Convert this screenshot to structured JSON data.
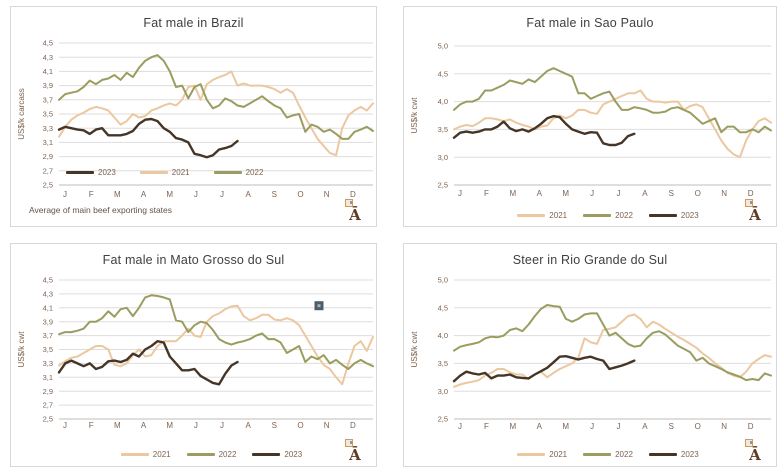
{
  "page": {
    "background": "#ffffff"
  },
  "months": [
    "J",
    "F",
    "M",
    "A",
    "M",
    "J",
    "J",
    "A",
    "S",
    "O",
    "N",
    "D"
  ],
  "colors": {
    "y2021": "#ecc79f",
    "y2022": "#9a9d5f",
    "y2023": "#453527",
    "grid": "#dddddd",
    "axis": "#bdbdbd",
    "tick_text": "#7d6250",
    "title_text": "#3f3f3f",
    "artifact_outer": "#4e5d6a",
    "artifact_inner": "#9fb4bf"
  },
  "chart_data": [
    {
      "type": "line",
      "title": "Fat male in Brazil",
      "ylabel": "US$/k carcass",
      "footnote": "Average  of main  beef exporting states",
      "logo_text": "Ā",
      "y_axis": {
        "min": 2.5,
        "max": 4.5,
        "step": 0.2,
        "tick_labels": [
          "2,5",
          "2,7",
          "2,9",
          "3,1",
          "3,3",
          "3,5",
          "3,7",
          "3,9",
          "4,1",
          "4,3",
          "4,5"
        ]
      },
      "x_tick_labels": [
        "J",
        "F",
        "M",
        "A",
        "M",
        "J",
        "J",
        "A",
        "S",
        "O",
        "N",
        "D"
      ],
      "legend": {
        "position": "inside",
        "order": [
          "2023",
          "2021",
          "2022"
        ]
      },
      "series": [
        {
          "name": "2021",
          "color": "#ecc79f",
          "values": [
            3.18,
            3.32,
            3.42,
            3.48,
            3.52,
            3.57,
            3.6,
            3.58,
            3.55,
            3.45,
            3.35,
            3.4,
            3.5,
            3.45,
            3.47,
            3.55,
            3.58,
            3.62,
            3.65,
            3.62,
            3.7,
            3.88,
            3.9,
            3.7,
            3.92,
            3.98,
            4.02,
            4.05,
            4.1,
            3.9,
            3.93,
            3.9,
            3.9,
            3.9,
            3.88,
            3.85,
            3.8,
            3.85,
            3.8,
            3.62,
            3.45,
            3.3,
            3.15,
            3.05,
            2.95,
            2.92,
            3.3,
            3.48,
            3.55,
            3.6,
            3.55,
            3.65
          ]
        },
        {
          "name": "2022",
          "color": "#9a9d5f",
          "values": [
            3.7,
            3.78,
            3.8,
            3.82,
            3.88,
            3.97,
            3.92,
            3.98,
            4.0,
            4.05,
            3.98,
            4.08,
            4.02,
            4.15,
            4.25,
            4.3,
            4.33,
            4.25,
            4.1,
            3.88,
            3.9,
            3.72,
            3.88,
            3.92,
            3.7,
            3.58,
            3.62,
            3.72,
            3.68,
            3.62,
            3.6,
            3.65,
            3.7,
            3.75,
            3.68,
            3.62,
            3.58,
            3.45,
            3.48,
            3.5,
            3.25,
            3.35,
            3.32,
            3.25,
            3.28,
            3.22,
            3.15,
            3.15,
            3.25,
            3.28,
            3.32,
            3.26
          ]
        },
        {
          "name": "2023",
          "color": "#453527",
          "values": [
            3.28,
            3.32,
            3.3,
            3.28,
            3.27,
            3.22,
            3.28,
            3.3,
            3.2,
            3.2,
            3.2,
            3.22,
            3.26,
            3.36,
            3.42,
            3.43,
            3.4,
            3.3,
            3.25,
            3.16,
            3.14,
            3.1,
            2.94,
            2.92,
            2.89,
            2.92,
            3.0,
            3.02,
            3.05,
            3.12
          ]
        }
      ]
    },
    {
      "type": "line",
      "title": "Fat male in Sao Paulo",
      "ylabel": "US$/k cwt",
      "logo_text": "Ā",
      "y_axis": {
        "min": 2.5,
        "max": 5.0,
        "step": 0.5,
        "tick_labels": [
          "2,5",
          "3,0",
          "3,5",
          "4,0",
          "4,5",
          "5,0"
        ]
      },
      "x_tick_labels": [
        "J",
        "F",
        "M",
        "A",
        "M",
        "J",
        "J",
        "A",
        "S",
        "O",
        "N",
        "D"
      ],
      "legend": {
        "position": "below",
        "order": [
          "2021",
          "2022",
          "2023"
        ]
      },
      "series": [
        {
          "name": "2021",
          "color": "#ecc79f",
          "values": [
            3.5,
            3.55,
            3.58,
            3.56,
            3.62,
            3.7,
            3.7,
            3.68,
            3.65,
            3.68,
            3.62,
            3.58,
            3.55,
            3.5,
            3.55,
            3.57,
            3.7,
            3.75,
            3.7,
            3.75,
            3.85,
            3.85,
            3.8,
            3.78,
            3.95,
            4.0,
            4.05,
            4.1,
            4.15,
            4.15,
            4.2,
            4.05,
            4.0,
            4.0,
            3.98,
            4.0,
            4.0,
            3.85,
            3.92,
            3.95,
            3.9,
            3.7,
            3.5,
            3.3,
            3.15,
            3.05,
            3.0,
            3.3,
            3.5,
            3.65,
            3.7,
            3.62
          ]
        },
        {
          "name": "2022",
          "color": "#9a9d5f",
          "values": [
            3.85,
            3.95,
            4.0,
            4.0,
            4.05,
            4.2,
            4.2,
            4.25,
            4.3,
            4.38,
            4.35,
            4.32,
            4.4,
            4.35,
            4.45,
            4.55,
            4.6,
            4.55,
            4.5,
            4.45,
            4.15,
            4.15,
            4.05,
            4.1,
            4.15,
            4.18,
            4.0,
            3.85,
            3.85,
            3.9,
            3.88,
            3.85,
            3.8,
            3.8,
            3.82,
            3.88,
            3.9,
            3.85,
            3.8,
            3.7,
            3.6,
            3.65,
            3.7,
            3.45,
            3.55,
            3.55,
            3.45,
            3.45,
            3.5,
            3.45,
            3.55,
            3.48
          ]
        },
        {
          "name": "2023",
          "color": "#453527",
          "values": [
            3.35,
            3.44,
            3.46,
            3.44,
            3.46,
            3.5,
            3.5,
            3.55,
            3.64,
            3.52,
            3.47,
            3.5,
            3.46,
            3.52,
            3.6,
            3.7,
            3.74,
            3.72,
            3.6,
            3.5,
            3.46,
            3.42,
            3.45,
            3.44,
            3.25,
            3.22,
            3.22,
            3.26,
            3.38,
            3.42
          ]
        }
      ]
    },
    {
      "type": "line",
      "title": "Fat male in Mato Grosso do Sul",
      "ylabel": "US$/k cwt",
      "logo_text": "Ā",
      "artifact_marker": {
        "x_frac": 0.828,
        "y_value": 4.13
      },
      "y_axis": {
        "min": 2.5,
        "max": 4.5,
        "step": 0.2,
        "tick_labels": [
          "2,5",
          "2,7",
          "2,9",
          "3,1",
          "3,3",
          "3,5",
          "3,7",
          "3,9",
          "4,1",
          "4,3",
          "4,5"
        ]
      },
      "x_tick_labels": [
        "J",
        "F",
        "M",
        "A",
        "M",
        "J",
        "J",
        "A",
        "S",
        "O",
        "N",
        "D"
      ],
      "legend": {
        "position": "below",
        "order": [
          "2021",
          "2022",
          "2023"
        ]
      },
      "series": [
        {
          "name": "2021",
          "color": "#ecc79f",
          "values": [
            3.27,
            3.33,
            3.38,
            3.4,
            3.45,
            3.5,
            3.55,
            3.55,
            3.5,
            3.28,
            3.26,
            3.3,
            3.42,
            3.5,
            3.4,
            3.42,
            3.55,
            3.62,
            3.62,
            3.62,
            3.7,
            3.8,
            3.7,
            3.68,
            3.9,
            3.98,
            4.02,
            4.08,
            4.12,
            4.13,
            3.98,
            3.92,
            3.95,
            4.0,
            4.0,
            3.93,
            3.92,
            3.95,
            3.92,
            3.85,
            3.7,
            3.55,
            3.4,
            3.28,
            3.22,
            3.1,
            3.0,
            3.3,
            3.55,
            3.62,
            3.48,
            3.68
          ]
        },
        {
          "name": "2022",
          "color": "#9a9d5f",
          "values": [
            3.72,
            3.75,
            3.75,
            3.77,
            3.8,
            3.9,
            3.9,
            3.95,
            4.05,
            3.97,
            4.08,
            4.1,
            3.98,
            4.1,
            4.25,
            4.28,
            4.27,
            4.25,
            4.22,
            3.92,
            3.9,
            3.75,
            3.85,
            3.9,
            3.88,
            3.78,
            3.65,
            3.6,
            3.57,
            3.6,
            3.62,
            3.65,
            3.7,
            3.73,
            3.65,
            3.65,
            3.6,
            3.45,
            3.5,
            3.55,
            3.32,
            3.4,
            3.36,
            3.42,
            3.3,
            3.35,
            3.28,
            3.22,
            3.3,
            3.35,
            3.3,
            3.26
          ]
        },
        {
          "name": "2023",
          "color": "#453527",
          "values": [
            3.17,
            3.3,
            3.34,
            3.3,
            3.26,
            3.3,
            3.22,
            3.25,
            3.33,
            3.34,
            3.32,
            3.35,
            3.44,
            3.4,
            3.5,
            3.55,
            3.62,
            3.6,
            3.4,
            3.3,
            3.2,
            3.2,
            3.22,
            3.12,
            3.07,
            3.02,
            3.0,
            3.15,
            3.27,
            3.32
          ]
        }
      ]
    },
    {
      "type": "line",
      "title": "Steer  in Rio Grande do Sul",
      "ylabel": "US$/k cwt",
      "logo_text": "Ā",
      "y_axis": {
        "min": 2.5,
        "max": 5.0,
        "step": 0.5,
        "tick_labels": [
          "2,5",
          "3,0",
          "3,5",
          "4,0",
          "4,5",
          "5,0"
        ]
      },
      "x_tick_labels": [
        "J",
        "F",
        "M",
        "A",
        "M",
        "J",
        "J",
        "A",
        "S",
        "O",
        "N",
        "D"
      ],
      "legend": {
        "position": "below",
        "order": [
          "2021",
          "2022",
          "2023"
        ]
      },
      "series": [
        {
          "name": "2021",
          "color": "#ecc79f",
          "values": [
            3.08,
            3.12,
            3.15,
            3.17,
            3.2,
            3.28,
            3.33,
            3.4,
            3.4,
            3.34,
            3.3,
            3.3,
            3.22,
            3.3,
            3.35,
            3.25,
            3.33,
            3.4,
            3.45,
            3.5,
            3.6,
            3.95,
            3.88,
            3.85,
            4.1,
            4.12,
            4.15,
            4.25,
            4.35,
            4.38,
            4.3,
            4.15,
            4.25,
            4.2,
            4.12,
            4.05,
            3.98,
            3.92,
            3.85,
            3.78,
            3.68,
            3.6,
            3.5,
            3.42,
            3.33,
            3.28,
            3.25,
            3.35,
            3.5,
            3.58,
            3.65,
            3.62
          ]
        },
        {
          "name": "2022",
          "color": "#9a9d5f",
          "values": [
            3.73,
            3.8,
            3.83,
            3.85,
            3.88,
            3.95,
            3.98,
            3.97,
            4.0,
            4.1,
            4.13,
            4.08,
            4.2,
            4.35,
            4.48,
            4.55,
            4.53,
            4.52,
            4.3,
            4.25,
            4.3,
            4.38,
            4.4,
            4.4,
            4.2,
            4.0,
            4.05,
            3.95,
            3.85,
            3.8,
            3.82,
            3.95,
            4.05,
            4.08,
            4.02,
            3.92,
            3.82,
            3.76,
            3.7,
            3.55,
            3.6,
            3.5,
            3.45,
            3.4,
            3.34,
            3.3,
            3.26,
            3.2,
            3.22,
            3.2,
            3.32,
            3.28
          ]
        },
        {
          "name": "2023",
          "color": "#453527",
          "values": [
            3.18,
            3.28,
            3.35,
            3.32,
            3.3,
            3.33,
            3.23,
            3.28,
            3.28,
            3.3,
            3.25,
            3.24,
            3.23,
            3.3,
            3.36,
            3.42,
            3.52,
            3.62,
            3.63,
            3.6,
            3.57,
            3.6,
            3.62,
            3.58,
            3.55,
            3.4,
            3.43,
            3.46,
            3.5,
            3.55
          ]
        }
      ]
    }
  ]
}
